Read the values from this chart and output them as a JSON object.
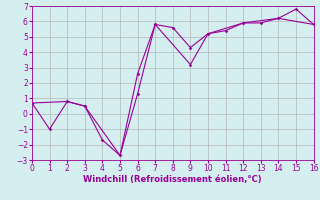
{
  "line1_x": [
    0,
    1,
    2,
    3,
    4,
    5,
    6,
    7,
    8,
    9,
    10,
    11,
    12,
    13,
    14,
    15,
    16
  ],
  "line1_y": [
    0.7,
    -1.0,
    0.8,
    0.5,
    -1.7,
    -2.7,
    1.3,
    5.8,
    5.6,
    4.3,
    5.2,
    5.4,
    5.9,
    5.9,
    6.2,
    6.8,
    5.8
  ],
  "line2_x": [
    0,
    2,
    3,
    5,
    6,
    7,
    9,
    10,
    12,
    14,
    16
  ],
  "line2_y": [
    0.7,
    0.8,
    0.5,
    -2.7,
    2.6,
    5.8,
    3.2,
    5.2,
    5.9,
    6.2,
    5.8
  ],
  "color": "#990099",
  "bg_color": "#d5eef0",
  "grid_color": "#aaaaaa",
  "xlabel": "Windchill (Refroidissement éolien,°C)",
  "xlim": [
    0,
    16
  ],
  "ylim": [
    -3,
    7
  ],
  "xticks": [
    0,
    1,
    2,
    3,
    4,
    5,
    6,
    7,
    8,
    9,
    10,
    11,
    12,
    13,
    14,
    15,
    16
  ],
  "yticks": [
    -3,
    -2,
    -1,
    0,
    1,
    2,
    3,
    4,
    5,
    6,
    7
  ],
  "xlabel_fontsize": 6.0,
  "tick_fontsize": 5.5
}
